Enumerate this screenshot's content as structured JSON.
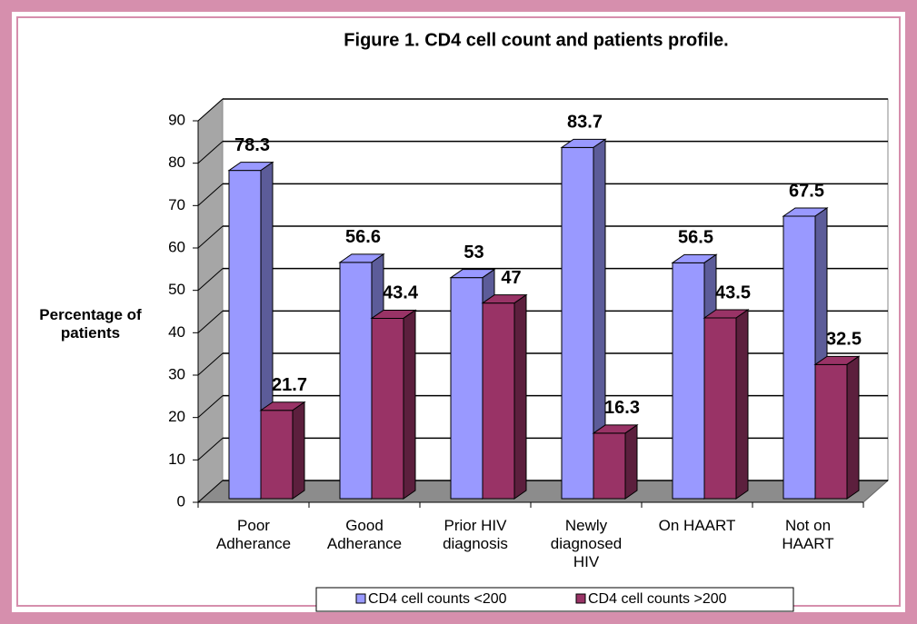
{
  "chart_data": {
    "type": "bar3d",
    "title": "Figure 1. CD4 cell count and patients profile.",
    "y_label": "Percentage of patients",
    "categories": [
      "Poor\nAdherance",
      "Good\nAdherance",
      "Prior HIV\ndiagnosis",
      "Newly\ndiagnosed\nHIV",
      "On HAART",
      "Not on\nHAART"
    ],
    "series": [
      {
        "name": "CD4 cell counts <200",
        "color": "#9999ff",
        "values": [
          78.3,
          56.6,
          53,
          83.7,
          56.5,
          67.5
        ]
      },
      {
        "name": "CD4 cell counts >200",
        "color": "#993366",
        "values": [
          21.7,
          43.4,
          47,
          16.3,
          43.5,
          32.5
        ]
      }
    ],
    "ylim": [
      0,
      90
    ],
    "yticks": [
      0,
      10,
      20,
      30,
      40,
      50,
      60,
      70,
      80,
      90
    ],
    "grid": true,
    "legend": "bottom"
  }
}
